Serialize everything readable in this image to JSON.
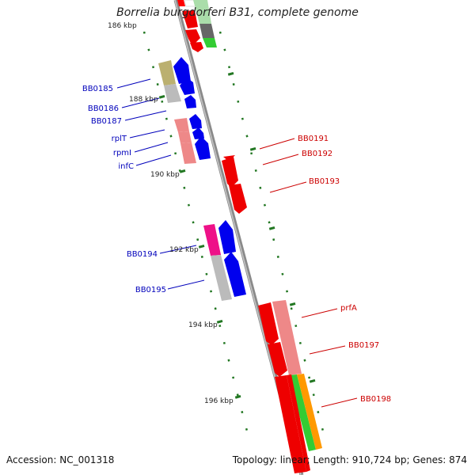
{
  "title": "Borrelia burgdorferi B31, complete genome",
  "footer": {
    "accession": "Accession: NC_001318",
    "summary": "Topology: linear; Length: 910,724 bp; Genes: 874"
  },
  "colors": {
    "forward_label": "#cc0000",
    "reverse_label": "#0000bb",
    "tick": "#227722",
    "backbone": "#8a8a8a"
  },
  "scale_labels": [
    "186 kbp",
    "188 kbp",
    "190 kbp",
    "192 kbp",
    "194 kbp",
    "196 kbp"
  ],
  "forward_labels": [
    "BB0191",
    "BB0192",
    "BB0193",
    "prfA",
    "BB0197",
    "BB0198"
  ],
  "reverse_labels": [
    "BB0185",
    "BB0186",
    "BB0187",
    "rplT",
    "rpmI",
    "infC",
    "BB0194",
    "BB0195"
  ]
}
